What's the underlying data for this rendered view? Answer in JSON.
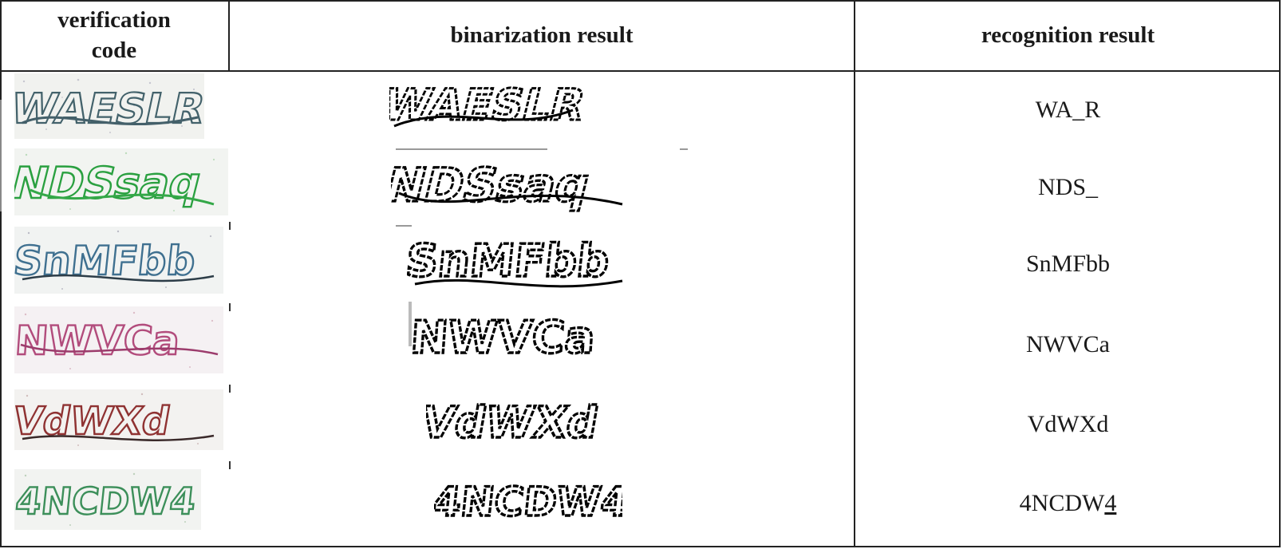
{
  "headers": {
    "col1": "verification\ncode",
    "col2": "binarization result",
    "col3": "recognition result"
  },
  "rows": [
    {
      "captcha_text": "WAESLR",
      "captcha_color": "#3f5a63",
      "recognition": "WA_R",
      "recognition_underline": ""
    },
    {
      "captcha_text": "NDSsaq",
      "captcha_color": "#2a9a3c",
      "recognition": "NDS_",
      "recognition_underline": ""
    },
    {
      "captcha_text": "SnMFbb",
      "captcha_color": "#3d6f8c",
      "recognition": "SnMFbb",
      "recognition_underline": ""
    },
    {
      "captcha_text": "NWVCa",
      "captcha_color": "#b0487a",
      "recognition": "NWVCa",
      "recognition_underline": ""
    },
    {
      "captcha_text": "VdWXd",
      "captcha_color": "#8a2f2f",
      "recognition": "VdWXd",
      "recognition_underline": ""
    },
    {
      "captcha_text": "4NCDW4",
      "captcha_color": "#3c8f5a",
      "recognition": "4NCDW",
      "recognition_underline": "4"
    }
  ]
}
